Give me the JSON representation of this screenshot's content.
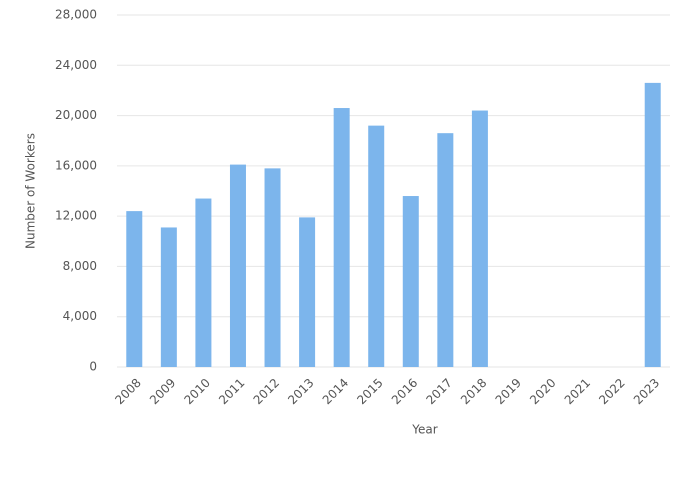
{
  "chart_data": {
    "type": "bar",
    "x_label": "Year",
    "y_label": "Number of Workers",
    "categories": [
      "2008",
      "2009",
      "2010",
      "2011",
      "2012",
      "2013",
      "2014",
      "2015",
      "2016",
      "2017",
      "2018",
      "2019",
      "2020",
      "2021",
      "2022",
      "2023"
    ],
    "values": [
      12400,
      11100,
      13400,
      16100,
      15800,
      11900,
      20600,
      19200,
      13600,
      18600,
      20400,
      null,
      null,
      null,
      null,
      22600
    ],
    "color": "#7cb5ec",
    "ylim": [
      0,
      28000
    ],
    "yticks": [
      0,
      {
        "value": 4000,
        "label": "4,000"
      },
      {
        "value": 8000,
        "label": "8,000"
      },
      {
        "value": 12000,
        "label": "12,000"
      },
      {
        "value": 16000,
        "label": "16,000"
      },
      {
        "value": 20000,
        "label": "20,000"
      },
      {
        "value": 24000,
        "label": "24,000"
      },
      {
        "value": 28000,
        "label": "28,000"
      }
    ],
    "grid": true
  }
}
